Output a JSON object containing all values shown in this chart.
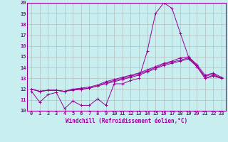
{
  "xlabel": "Windchill (Refroidissement éolien,°C)",
  "ylim": [
    10,
    20
  ],
  "xlim": [
    -0.5,
    23.5
  ],
  "bg_color": "#c8eef0",
  "grid_color": "#b0b0b0",
  "line_color": "#990099",
  "xticks": [
    0,
    1,
    2,
    3,
    4,
    5,
    6,
    7,
    8,
    9,
    10,
    11,
    12,
    13,
    14,
    15,
    16,
    17,
    18,
    19,
    20,
    21,
    22,
    23
  ],
  "yticks": [
    10,
    11,
    12,
    13,
    14,
    15,
    16,
    17,
    18,
    19,
    20
  ],
  "line1_y": [
    11.8,
    10.8,
    11.5,
    11.7,
    10.2,
    10.9,
    10.5,
    10.5,
    11.1,
    10.5,
    12.5,
    12.5,
    12.8,
    13.0,
    15.5,
    19.0,
    20.0,
    19.5,
    17.2,
    15.0,
    14.2,
    13.0,
    13.3,
    13.0
  ],
  "line2_y": [
    12.0,
    11.8,
    11.9,
    11.9,
    11.8,
    11.9,
    12.0,
    12.1,
    12.3,
    12.5,
    12.7,
    12.9,
    13.1,
    13.3,
    13.6,
    13.9,
    14.2,
    14.4,
    14.6,
    14.8,
    14.1,
    13.0,
    13.2,
    13.0
  ],
  "line3_y": [
    12.0,
    11.8,
    11.9,
    11.9,
    11.8,
    12.0,
    12.1,
    12.2,
    12.4,
    12.7,
    12.9,
    13.1,
    13.3,
    13.5,
    13.8,
    14.1,
    14.4,
    14.6,
    14.9,
    15.0,
    14.3,
    13.3,
    13.5,
    13.1
  ],
  "line4_y": [
    12.0,
    11.8,
    11.9,
    11.9,
    11.8,
    12.0,
    12.0,
    12.1,
    12.3,
    12.6,
    12.8,
    13.0,
    13.2,
    13.4,
    13.7,
    14.0,
    14.3,
    14.5,
    14.7,
    14.9,
    14.1,
    13.2,
    13.4,
    13.0
  ]
}
